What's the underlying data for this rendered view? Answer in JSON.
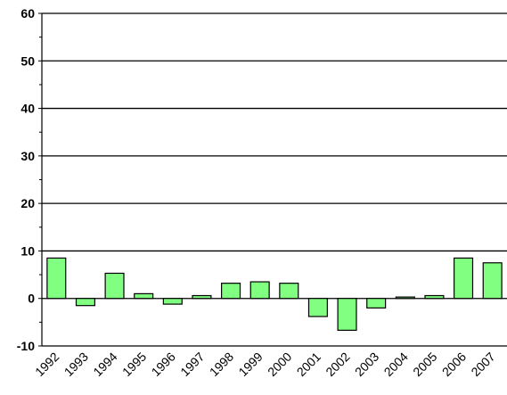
{
  "chart_data": {
    "type": "bar",
    "categories": [
      "1992",
      "1993",
      "1994",
      "1995",
      "1996",
      "1997",
      "1998",
      "1999",
      "2000",
      "2001",
      "2002",
      "2003",
      "2004",
      "2005",
      "2006",
      "2007"
    ],
    "values": [
      8.5,
      -1.5,
      5.3,
      1.0,
      -1.2,
      0.6,
      3.2,
      3.5,
      3.2,
      -3.8,
      -6.7,
      -2.0,
      0.3,
      0.6,
      8.5,
      7.5
    ],
    "ylim": [
      -10,
      60
    ],
    "yticks": [
      -10,
      0,
      10,
      20,
      30,
      40,
      50,
      60
    ],
    "grid": true,
    "bar_color": "#80ff80",
    "bar_edge_color": "#000000",
    "title": "",
    "xlabel": "",
    "ylabel": ""
  }
}
